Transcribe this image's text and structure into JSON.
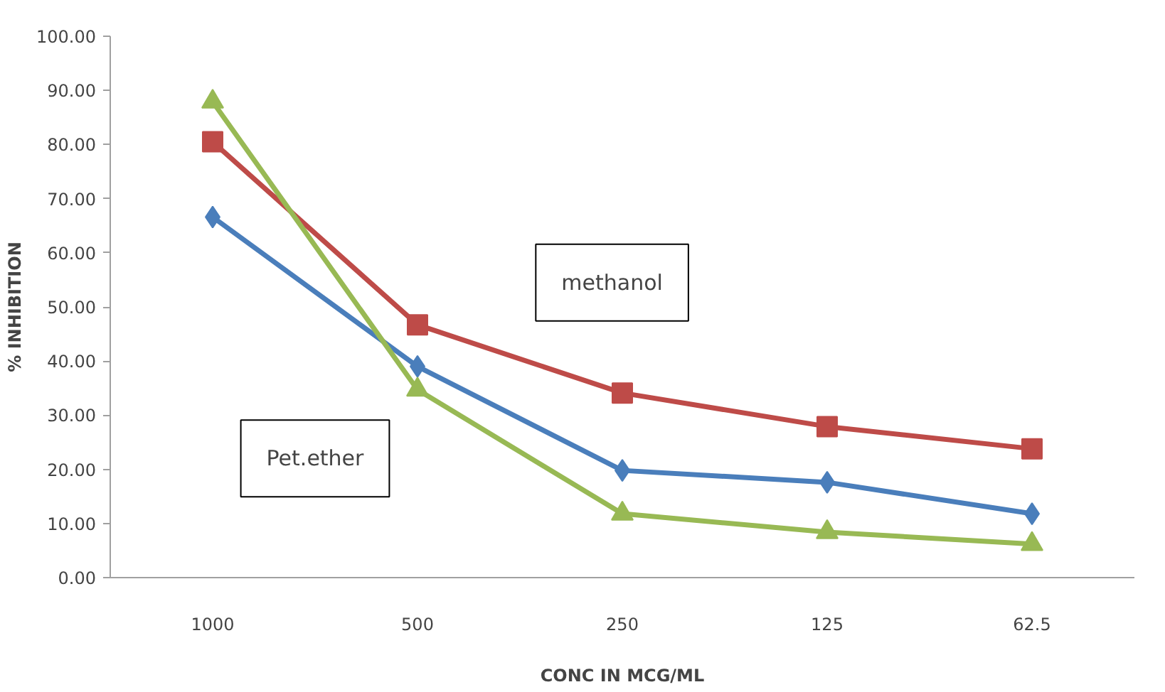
{
  "chart_data": {
    "type": "line",
    "xlabel": "CONC IN MCG/ML",
    "ylabel": "% INHIBITION",
    "categories": [
      "1000",
      "500",
      "250",
      "125",
      "62.5"
    ],
    "series": [
      {
        "color": "#4a7ebb",
        "marker": "diamond",
        "values": [
          66.6,
          39.0,
          19.8,
          17.6,
          11.8
        ]
      },
      {
        "color": "#be4b48",
        "marker": "square",
        "values": [
          80.5,
          46.7,
          34.1,
          27.9,
          23.8
        ]
      },
      {
        "color": "#98b954",
        "marker": "triangle",
        "values": [
          87.9,
          34.7,
          11.8,
          8.4,
          6.2
        ]
      }
    ],
    "annotations": [
      "methanol",
      "Pet.ether"
    ],
    "ylim": [
      0,
      100
    ],
    "yticks": [
      {
        "value": 0,
        "label": "0.00"
      },
      {
        "value": 10,
        "label": "10.00"
      },
      {
        "value": 20,
        "label": "20.00"
      },
      {
        "value": 30,
        "label": "30.00"
      },
      {
        "value": 40,
        "label": "40.00"
      },
      {
        "value": 50,
        "label": "50.00"
      },
      {
        "value": 60,
        "label": "60.00"
      },
      {
        "value": 70,
        "label": "70.00"
      },
      {
        "value": 80,
        "label": "80.00"
      },
      {
        "value": 90,
        "label": "90.00"
      },
      {
        "value": 100,
        "label": "100.00"
      }
    ],
    "line_style": "solid"
  }
}
